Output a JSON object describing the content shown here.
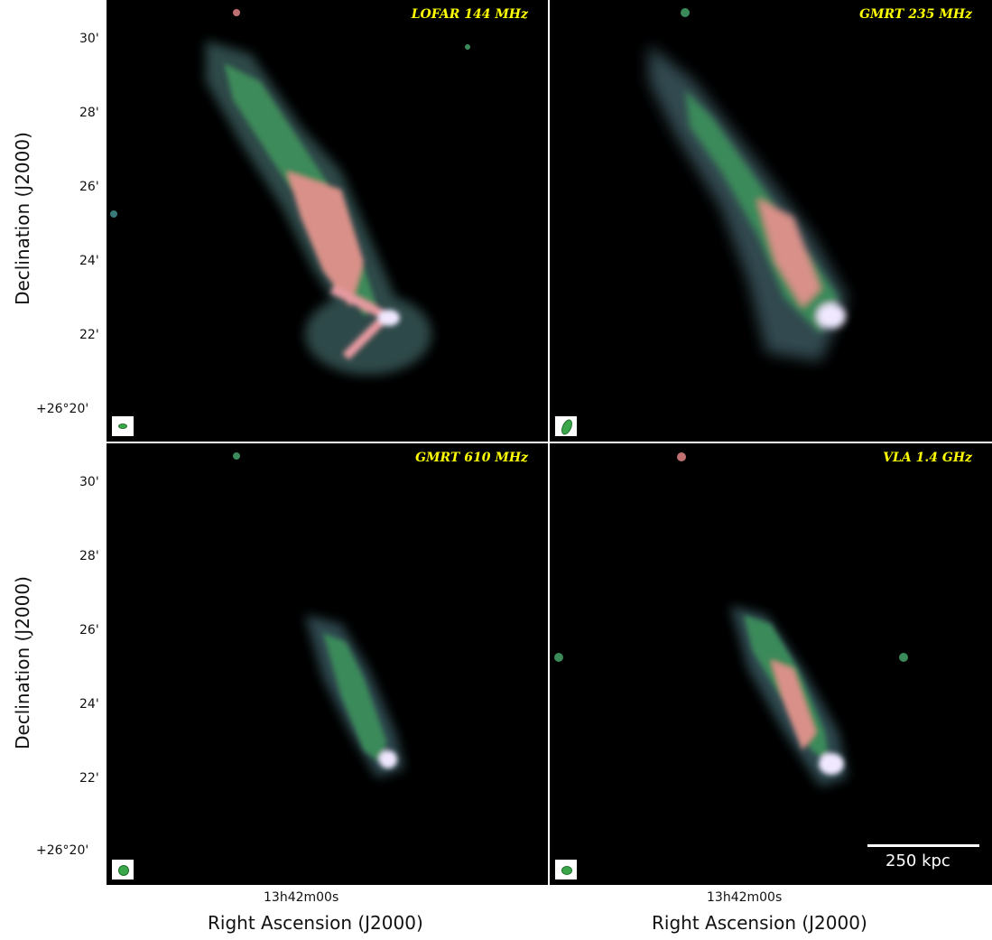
{
  "panels": [
    {
      "label": "LOFAR 144 MHz"
    },
    {
      "label": "GMRT 235 MHz"
    },
    {
      "label": "GMRT 610 MHz"
    },
    {
      "label": "VLA 1.4 GHz"
    }
  ],
  "axes": {
    "ylabel": "Declination (J2000)",
    "xlabel": "Right Ascension (J2000)",
    "yticks": [
      "30'",
      "28'",
      "26'",
      "24'",
      "22'",
      "+26°20'"
    ],
    "xtick": "13h42m00s"
  },
  "scalebar": {
    "label": "250 kpc"
  },
  "colors": {
    "label": "#ffff00",
    "beam": "#3aa84a",
    "background": "#000000"
  }
}
